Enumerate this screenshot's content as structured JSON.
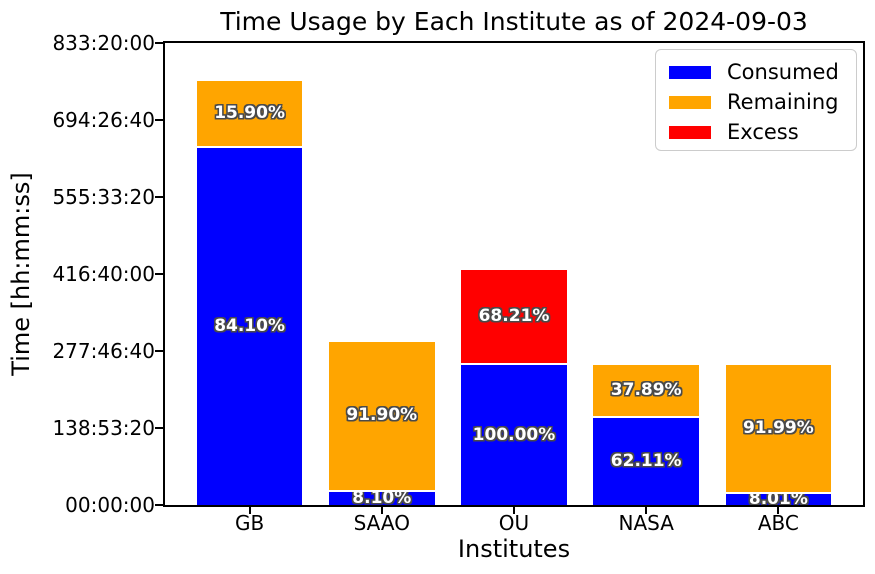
{
  "chart_data": {
    "type": "bar",
    "stacked": true,
    "title": "Time Usage by Each Institute as of 2024-09-03",
    "xlabel": "Institutes",
    "ylabel": "Time [hh:mm:ss]",
    "categories": [
      "GB",
      "SAAO",
      "OU",
      "NASA",
      "ABC"
    ],
    "y_tick_labels": [
      "00:00:00",
      "138:53:20",
      "277:46:40",
      "416:40:00",
      "555:33:20",
      "694:26:40",
      "833:20:00"
    ],
    "y_tick_seconds": [
      0,
      500000,
      1000000,
      1500000,
      2000000,
      2500000,
      3000000
    ],
    "ylim_seconds": [
      0,
      3000000
    ],
    "grid": false,
    "legend_position": "upper right",
    "series": [
      {
        "name": "Consumed",
        "color": "#0000ff",
        "values_seconds": [
          2316114,
          85730,
          907200,
          563462,
          72667
        ],
        "percent_labels": [
          "84.10%",
          "8.10%",
          "100.00%",
          "62.11%",
          "8.01%"
        ]
      },
      {
        "name": "Remaining",
        "color": "#ffa500",
        "values_seconds": [
          437886,
          972670,
          0,
          343738,
          834533
        ],
        "percent_labels": [
          "15.90%",
          "91.90%",
          "",
          "37.89%",
          "91.99%"
        ]
      },
      {
        "name": "Excess",
        "color": "#ff0000",
        "values_seconds": [
          0,
          0,
          618801,
          0,
          0
        ],
        "percent_labels": [
          "",
          "",
          "68.21%",
          "",
          ""
        ]
      }
    ],
    "legend": [
      {
        "label": "Consumed",
        "color": "#0000ff"
      },
      {
        "label": "Remaining",
        "color": "#ffa500"
      },
      {
        "label": "Excess",
        "color": "#ff0000"
      }
    ]
  },
  "styles": {
    "axis_color": "#000000",
    "bar_label_text_color": "#ffffff",
    "bar_label_outline_color": "#4a4a4a",
    "segment_separator_color": "#ffffff",
    "legend_border_color": "#cccccc",
    "background_color": "#ffffff"
  }
}
